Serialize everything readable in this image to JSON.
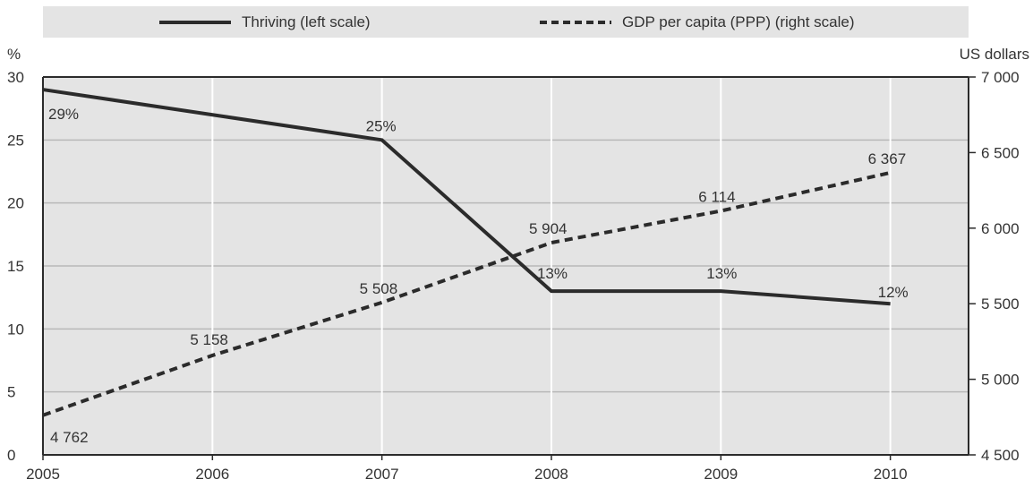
{
  "chart_data": {
    "type": "line",
    "x": [
      "2005",
      "2006",
      "2007",
      "2008",
      "2009",
      "2010"
    ],
    "y_left_unit": "%",
    "y_right_unit": "US dollars",
    "y_left_ticks": [
      "0",
      "5",
      "10",
      "15",
      "20",
      "25",
      "30"
    ],
    "y_right_ticks": [
      "4 500",
      "5 000",
      "5 500",
      "6 000",
      "6 500",
      "7 000"
    ],
    "ylim_left": [
      0,
      30
    ],
    "ylim_right": [
      4500,
      7000
    ],
    "grid": true,
    "legend_placement": "top",
    "series": [
      {
        "name": "Thriving (left scale)",
        "axis": "left",
        "style": "solid",
        "points": [
          {
            "x": "2005",
            "y": 29,
            "label": "29%"
          },
          {
            "x": "2007",
            "y": 25,
            "label": "25%"
          },
          {
            "x": "2008",
            "y": 13,
            "label": "13%"
          },
          {
            "x": "2009",
            "y": 13,
            "label": "13%"
          },
          {
            "x": "2010",
            "y": 12,
            "label": "12%"
          }
        ]
      },
      {
        "name": "GDP per capita (PPP) (right scale)",
        "axis": "right",
        "style": "dashed",
        "points": [
          {
            "x": "2005",
            "y": 4762,
            "label": "4 762"
          },
          {
            "x": "2006",
            "y": 5158,
            "label": "5 158"
          },
          {
            "x": "2007",
            "y": 5508,
            "label": "5 508"
          },
          {
            "x": "2008",
            "y": 5904,
            "label": "5 904"
          },
          {
            "x": "2009",
            "y": 6114,
            "label": "6 114"
          },
          {
            "x": "2010",
            "y": 6367,
            "label": "6 367"
          }
        ]
      }
    ],
    "colors": {
      "line": "#2b2b2b",
      "plot_bg": "#e4e4e4",
      "grid": "#ffffff",
      "legend_bg": "#e4e4e4"
    }
  }
}
